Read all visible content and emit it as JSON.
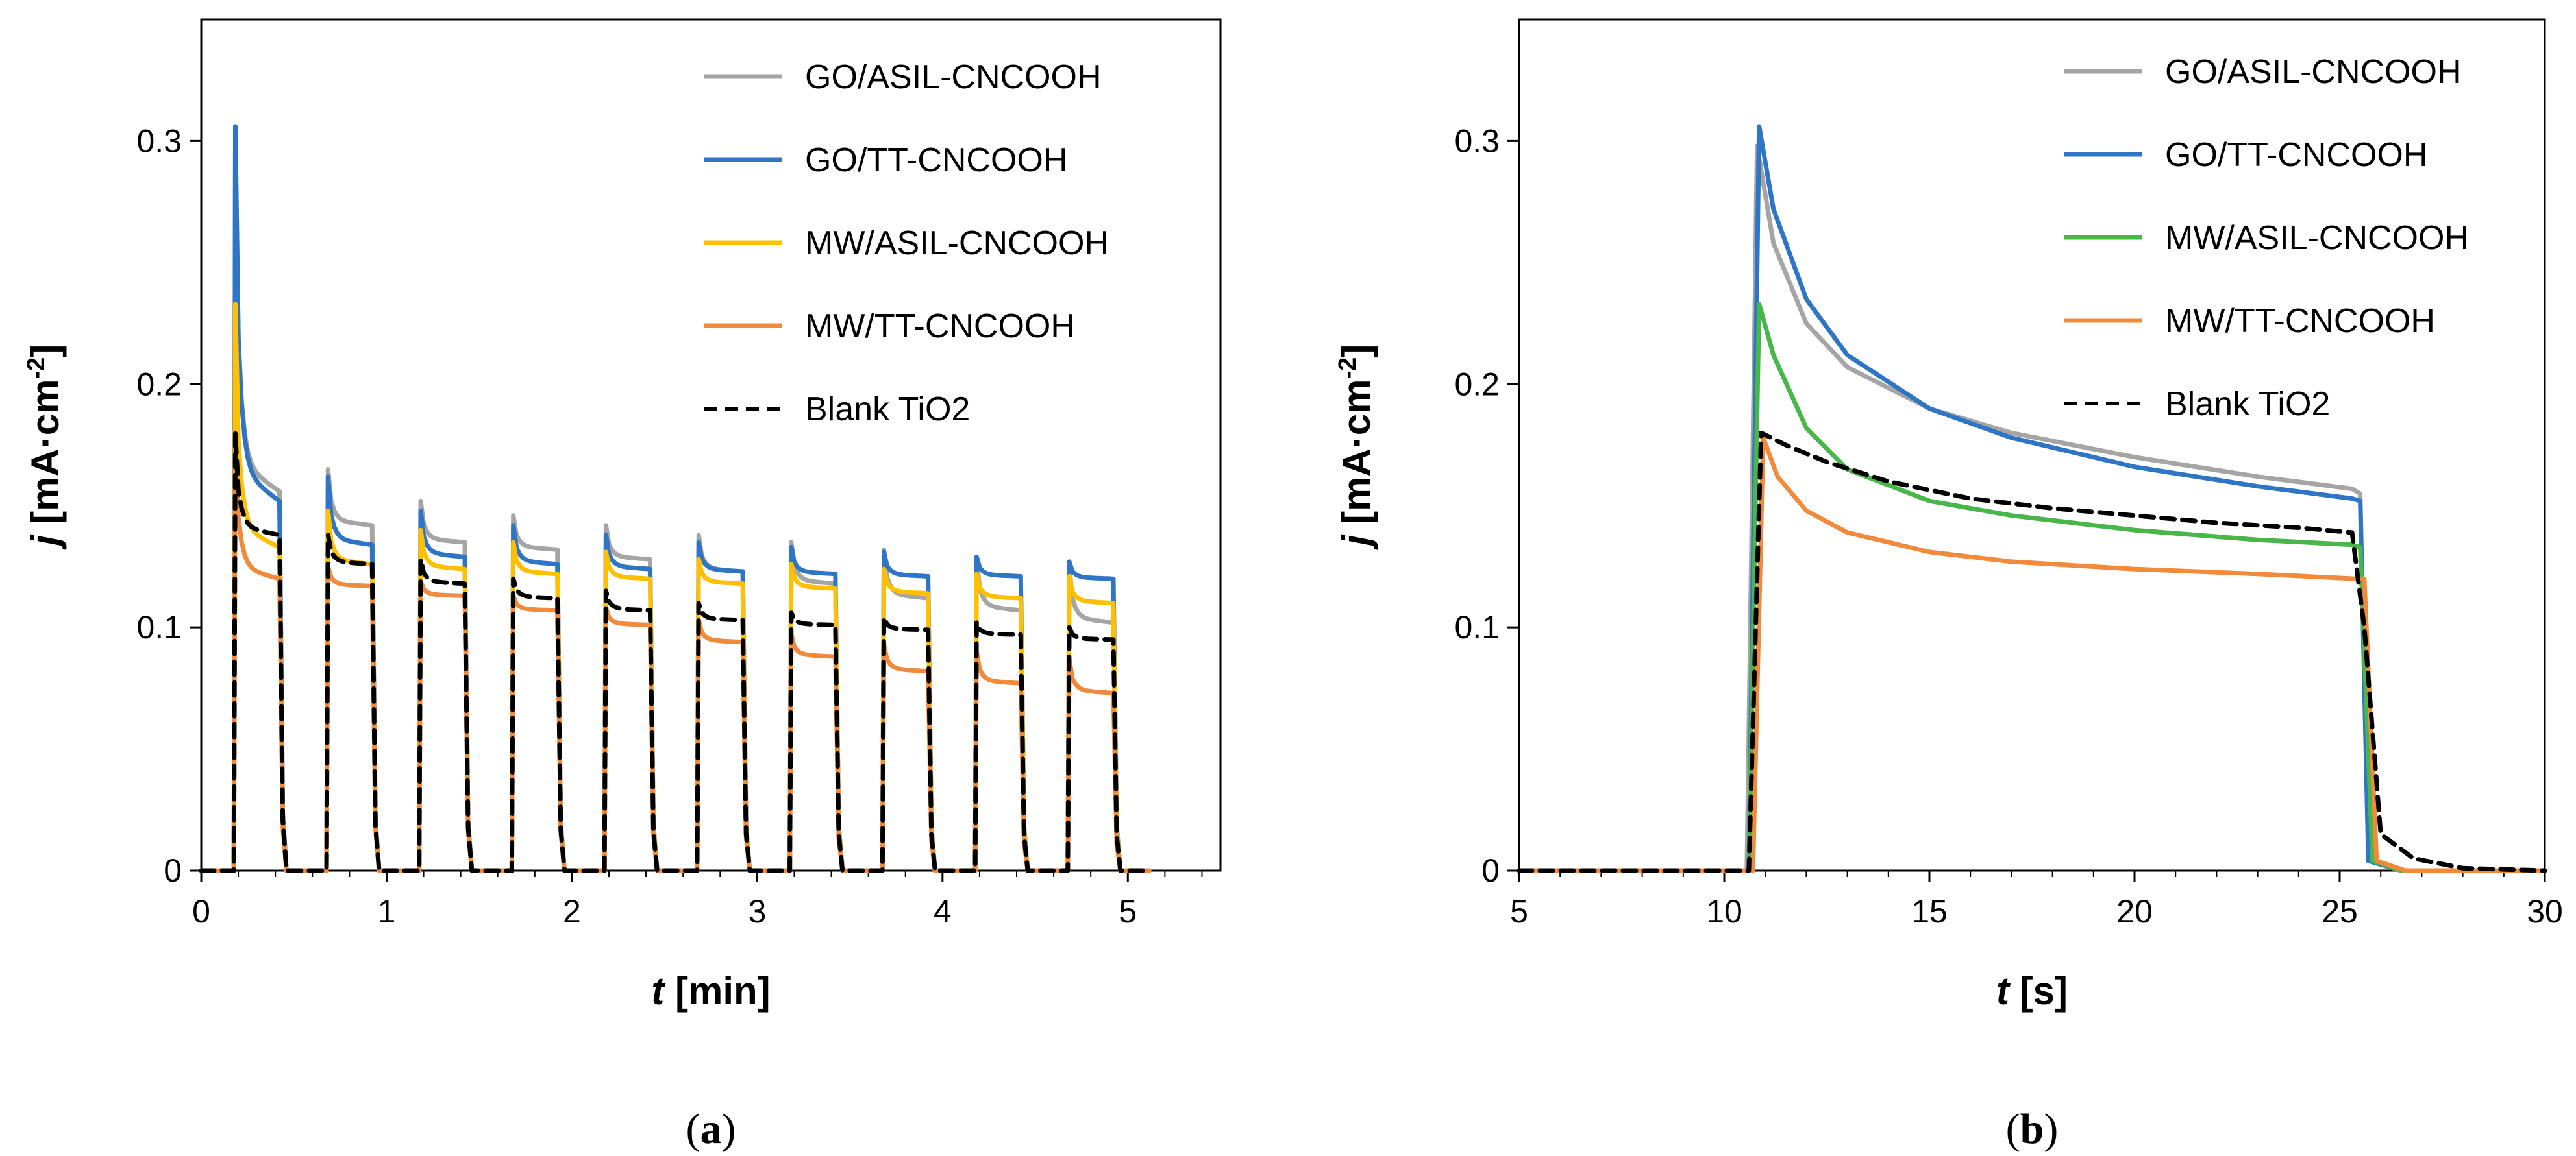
{
  "colors": {
    "gray": "#a5a5a5",
    "blue": "#2e75c6",
    "yellow": "#ffc000",
    "orange": "#f28a3c",
    "green": "#48b648",
    "black": "#000000"
  },
  "chart_data": [
    {
      "type": "line",
      "panel": "(a)",
      "title": "",
      "xlabel": "t [min]",
      "ylabel": "j [mA·cm-2]",
      "xlim": [
        0,
        5.5
      ],
      "ylim": [
        0,
        0.35
      ],
      "xticks": [
        0,
        1,
        2,
        3,
        4,
        5
      ],
      "yticks": [
        0,
        0.1,
        0.2,
        0.3
      ],
      "ytick_labels": [
        "0",
        "0.1",
        "0.2",
        "0.3"
      ],
      "legend_position": "top-right",
      "pulses": {
        "first_on_min": 0.18,
        "period_min": 0.5,
        "on_duration_min": 0.25,
        "count": 10
      },
      "series": [
        {
          "name": "GO/ASIL-CNCOOH",
          "color": "gray",
          "dash": false,
          "peaks": [
            0.298,
            0.165,
            0.152,
            0.146,
            0.142,
            0.138,
            0.135,
            0.132,
            0.128,
            0.125
          ],
          "ends": [
            0.156,
            0.142,
            0.135,
            0.132,
            0.128,
            0.123,
            0.118,
            0.112,
            0.107,
            0.102
          ]
        },
        {
          "name": "GO/TT-CNCOOH",
          "color": "blue",
          "dash": false,
          "peaks": [
            0.306,
            0.162,
            0.148,
            0.142,
            0.138,
            0.135,
            0.133,
            0.131,
            0.129,
            0.127
          ],
          "ends": [
            0.152,
            0.134,
            0.129,
            0.126,
            0.124,
            0.123,
            0.122,
            0.121,
            0.121,
            0.12
          ]
        },
        {
          "name": "MW/ASIL-CNCOOH",
          "color": "yellow",
          "dash": false,
          "peaks": [
            0.233,
            0.148,
            0.14,
            0.135,
            0.131,
            0.128,
            0.126,
            0.124,
            0.122,
            0.121
          ],
          "ends": [
            0.133,
            0.126,
            0.124,
            0.122,
            0.12,
            0.118,
            0.116,
            0.114,
            0.112,
            0.11
          ]
        },
        {
          "name": "MW/TT-CNCOOH",
          "color": "orange",
          "dash": false,
          "peaks": [
            0.178,
            0.125,
            0.119,
            0.113,
            0.108,
            0.103,
            0.097,
            0.093,
            0.09,
            0.087
          ],
          "ends": [
            0.12,
            0.117,
            0.113,
            0.107,
            0.101,
            0.094,
            0.088,
            0.082,
            0.077,
            0.073
          ]
        },
        {
          "name": "Blank TiO2",
          "color": "black",
          "dash": true,
          "peaks": [
            0.18,
            0.138,
            0.128,
            0.12,
            0.115,
            0.11,
            0.106,
            0.104,
            0.102,
            0.1
          ],
          "ends": [
            0.138,
            0.126,
            0.118,
            0.112,
            0.107,
            0.103,
            0.101,
            0.099,
            0.097,
            0.095
          ]
        }
      ]
    },
    {
      "type": "line",
      "panel": "(b)",
      "title": "",
      "xlabel": "t [s]",
      "ylabel": "j [mA·cm-2]",
      "xlim": [
        5,
        30
      ],
      "ylim": [
        0,
        0.35
      ],
      "xticks": [
        5,
        10,
        15,
        20,
        25,
        30
      ],
      "yticks": [
        0,
        0.1,
        0.2,
        0.3
      ],
      "ytick_labels": [
        "0",
        "0.1",
        "0.2",
        "0.3"
      ],
      "legend_position": "top-right",
      "series": [
        {
          "name": "GO/ASIL-CNCOOH",
          "color": "gray",
          "dash": false,
          "x": [
            5,
            10.55,
            10.8,
            11.2,
            12,
            13,
            15,
            17,
            20,
            23,
            25.3,
            25.5,
            25.7,
            26.5,
            30
          ],
          "y": [
            0,
            0,
            0.298,
            0.258,
            0.225,
            0.207,
            0.19,
            0.18,
            0.17,
            0.162,
            0.157,
            0.155,
            0.005,
            0,
            0
          ]
        },
        {
          "name": "GO/TT-CNCOOH",
          "color": "blue",
          "dash": false,
          "x": [
            5,
            10.6,
            10.85,
            11.2,
            12,
            13,
            15,
            17,
            20,
            23,
            25.3,
            25.5,
            25.7,
            26.5,
            30
          ],
          "y": [
            0,
            0,
            0.306,
            0.272,
            0.235,
            0.212,
            0.19,
            0.178,
            0.166,
            0.158,
            0.153,
            0.152,
            0.004,
            0,
            0
          ]
        },
        {
          "name": "MW/ASIL-CNCOOH",
          "color": "green",
          "dash": false,
          "x": [
            5,
            10.6,
            10.85,
            11.2,
            12,
            13,
            15,
            17,
            20,
            23,
            25.3,
            25.5,
            25.8,
            26.5,
            30
          ],
          "y": [
            0,
            0,
            0.233,
            0.212,
            0.182,
            0.165,
            0.152,
            0.146,
            0.14,
            0.136,
            0.134,
            0.133,
            0.004,
            0,
            0
          ]
        },
        {
          "name": "MW/TT-CNCOOH",
          "color": "orange",
          "dash": false,
          "x": [
            5,
            10.7,
            10.95,
            11.3,
            12,
            13,
            15,
            17,
            20,
            23,
            25.4,
            25.6,
            25.9,
            26.6,
            30
          ],
          "y": [
            0,
            0,
            0.178,
            0.162,
            0.148,
            0.139,
            0.131,
            0.127,
            0.124,
            0.122,
            0.12,
            0.12,
            0.004,
            0,
            0
          ]
        },
        {
          "name": "Blank TiO2",
          "color": "black",
          "dash": true,
          "x": [
            5,
            10.6,
            10.9,
            11.5,
            12.5,
            14,
            16,
            18,
            20,
            22,
            24,
            25.3,
            25.6,
            26,
            26.8,
            28,
            30
          ],
          "y": [
            0,
            0,
            0.18,
            0.175,
            0.168,
            0.16,
            0.153,
            0.149,
            0.146,
            0.143,
            0.141,
            0.139,
            0.1,
            0.015,
            0.005,
            0.001,
            0
          ]
        }
      ]
    }
  ]
}
